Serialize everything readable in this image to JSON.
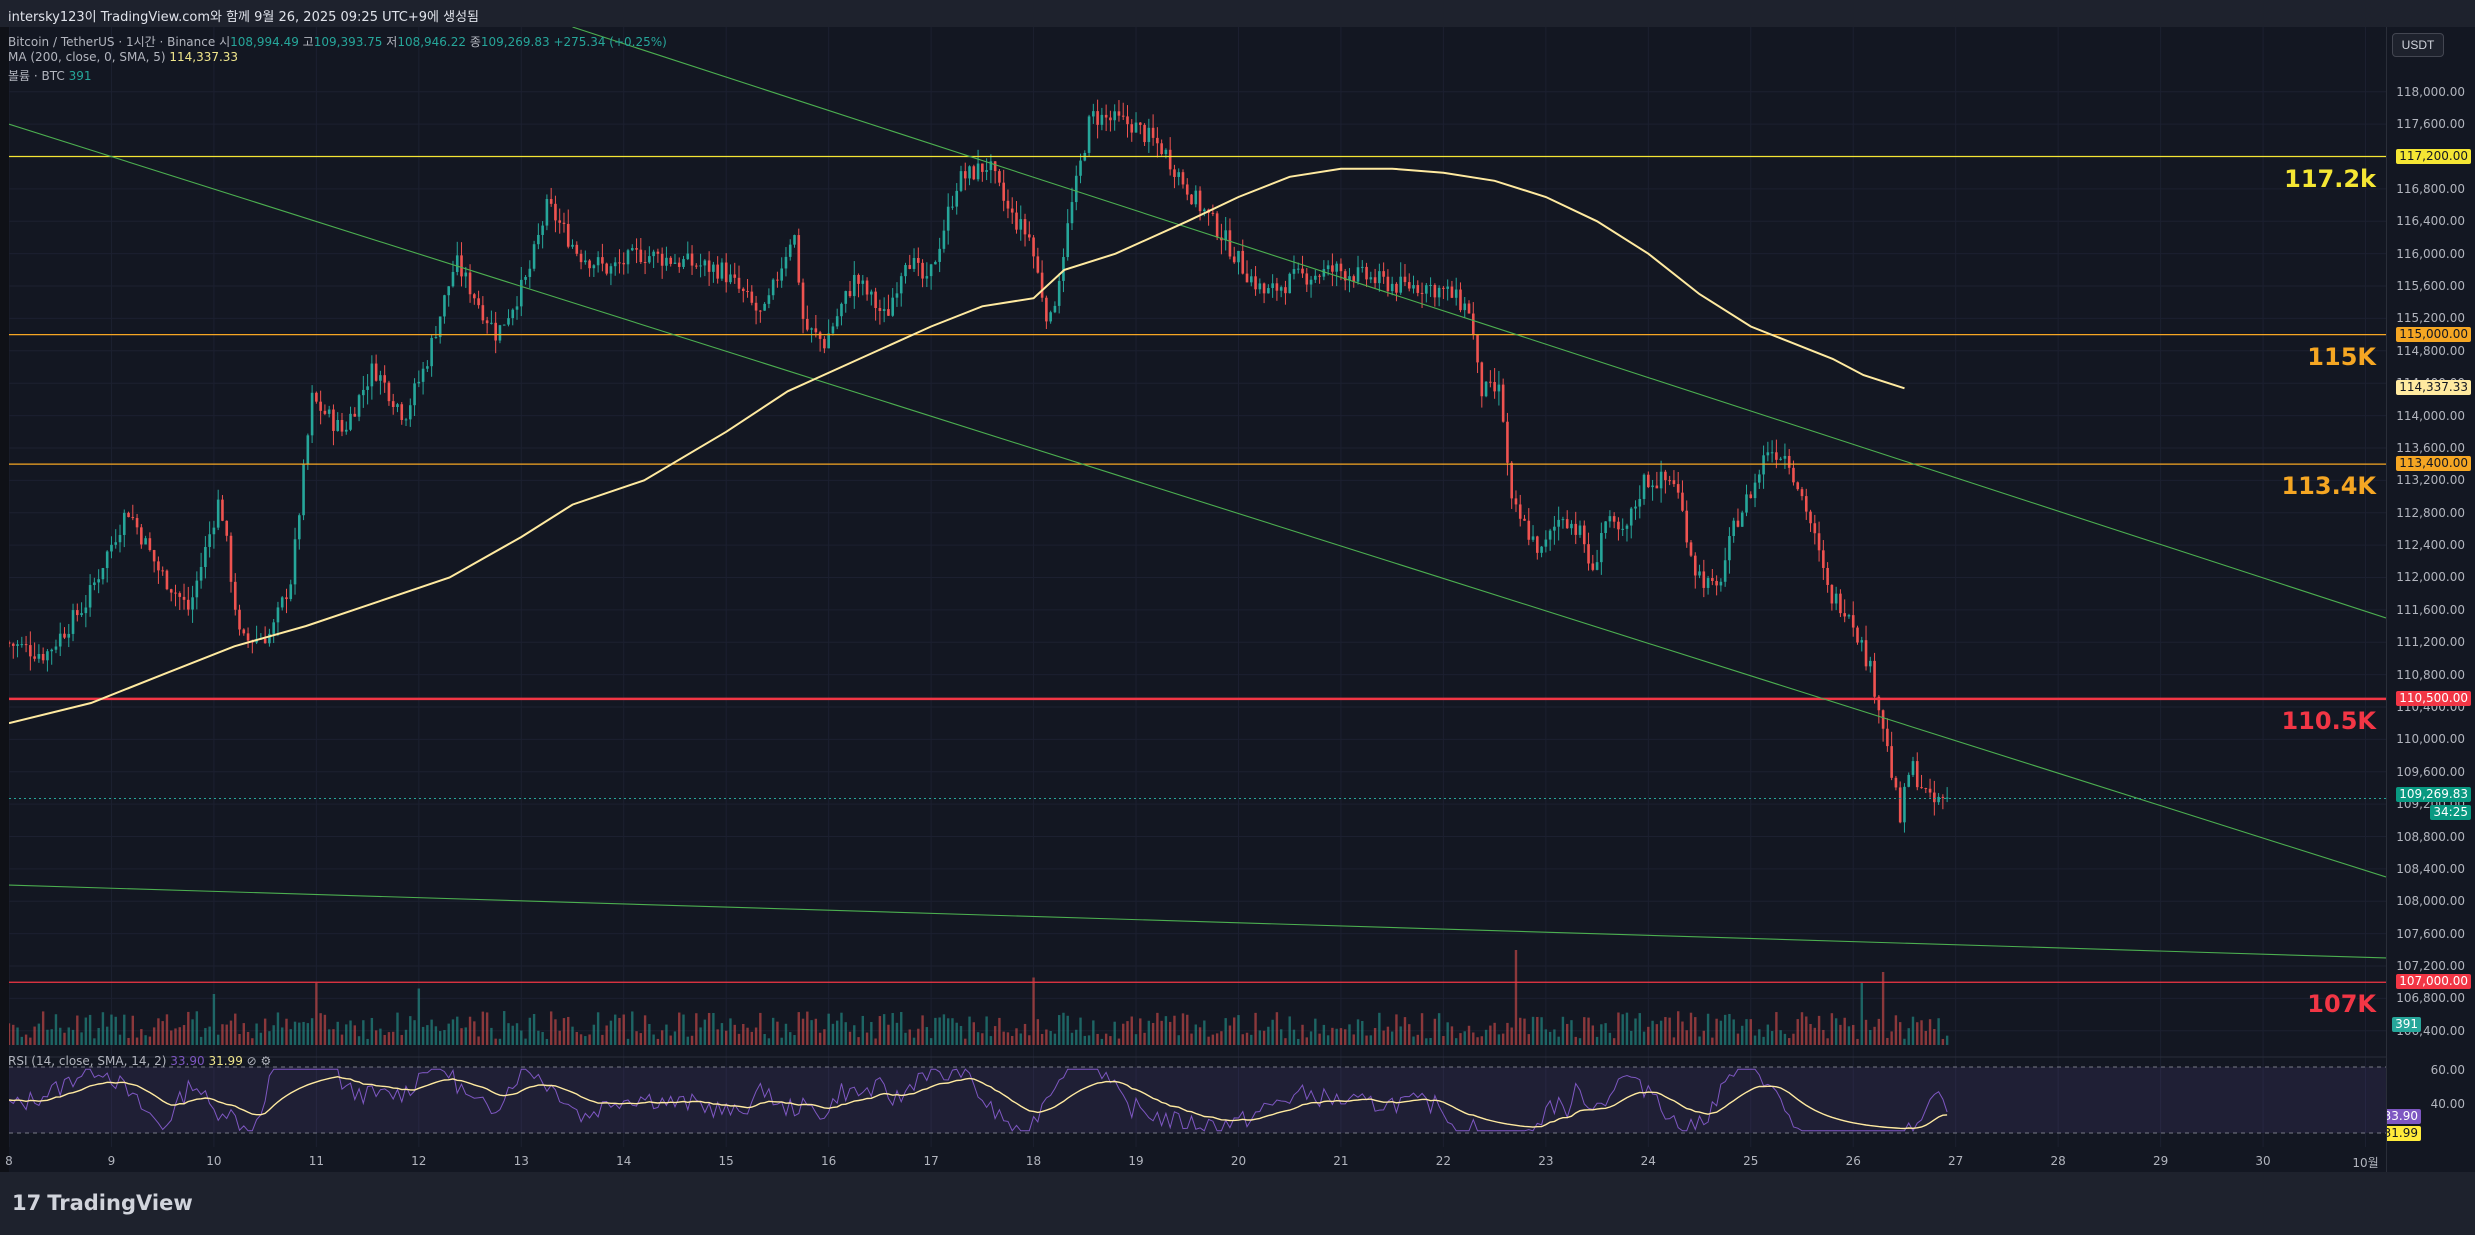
{
  "header": {
    "text": "intersky123이 TradingView.com와 함께 9월 26, 2025 09:25 UTC+9에 생성됨"
  },
  "legend": {
    "symbol": "Bitcoin / TetherUS · 1시간 · Binance",
    "o_label": "시",
    "o": "108,994.49",
    "h_label": "고",
    "h": "109,393.75",
    "l_label": "저",
    "l": "108,946.22",
    "c_label": "종",
    "c": "109,269.83",
    "change": "+275.34 (+0.25%)",
    "ma_label": "MA (200, close, 0, SMA, 5)",
    "ma_value": "114,337.33",
    "vol_label": "볼륨 · BTC",
    "vol_value": "391",
    "rsi_label": "RSI (14, close, SMA, 14, 2)",
    "rsi_value": "33.90",
    "rsi_ma": "31.99"
  },
  "currency_button": "USDT",
  "brand": {
    "name": "TradingView",
    "mark": "17"
  },
  "colors": {
    "bg": "#131722",
    "up": "#26a69a",
    "down": "#ef5350",
    "ma": "#ffeaa0",
    "trend": "#4caf50",
    "rsi": "#7e57c2"
  },
  "chart_data": {
    "type": "candlestick",
    "title": "Bitcoin / TetherUS · 1시간 · Binance",
    "price_range": [
      106200,
      118800
    ],
    "y_ticks": [
      "118,000.00",
      "117,600.00",
      "117,200.00",
      "116,800.00",
      "116,400.00",
      "116,000.00",
      "115,600.00",
      "115,200.00",
      "114,800.00",
      "114,400.00",
      "114,000.00",
      "113,600.00",
      "113,200.00",
      "112,800.00",
      "112,400.00",
      "112,000.00",
      "111,600.00",
      "111,200.00",
      "110,800.00",
      "110,400.00",
      "110,000.00",
      "109,600.00",
      "109,200.00",
      "108,800.00",
      "108,400.00",
      "108,000.00",
      "107,600.00",
      "107,200.00",
      "106,800.00",
      "106,400.00"
    ],
    "x_ticks": [
      "8",
      "9",
      "10",
      "11",
      "12",
      "13",
      "14",
      "15",
      "16",
      "17",
      "18",
      "19",
      "20",
      "21",
      "22",
      "23",
      "24",
      "25",
      "26",
      "27",
      "28",
      "29",
      "30",
      "10월"
    ],
    "x_days_range": [
      8,
      31.2
    ],
    "close_path": [
      [
        8.0,
        111200
      ],
      [
        8.4,
        111050
      ],
      [
        8.8,
        111700
      ],
      [
        9.0,
        112300
      ],
      [
        9.2,
        112850
      ],
      [
        9.5,
        112100
      ],
      [
        9.8,
        111600
      ],
      [
        10.1,
        113000
      ],
      [
        10.3,
        111200
      ],
      [
        10.6,
        111300
      ],
      [
        10.8,
        112000
      ],
      [
        11.0,
        114200
      ],
      [
        11.3,
        113800
      ],
      [
        11.6,
        114600
      ],
      [
        11.9,
        114000
      ],
      [
        12.1,
        114600
      ],
      [
        12.4,
        115900
      ],
      [
        12.8,
        115000
      ],
      [
        13.1,
        115700
      ],
      [
        13.3,
        116600
      ],
      [
        13.6,
        116000
      ],
      [
        13.9,
        115800
      ],
      [
        14.2,
        116000
      ],
      [
        14.6,
        115900
      ],
      [
        15.0,
        115800
      ],
      [
        15.2,
        115500
      ],
      [
        15.4,
        115200
      ],
      [
        15.7,
        116300
      ],
      [
        15.8,
        115100
      ],
      [
        16.0,
        114900
      ],
      [
        16.3,
        115700
      ],
      [
        16.6,
        115200
      ],
      [
        16.8,
        116000
      ],
      [
        17.0,
        115600
      ],
      [
        17.3,
        116900
      ],
      [
        17.6,
        117100
      ],
      [
        17.8,
        116500
      ],
      [
        18.0,
        116200
      ],
      [
        18.2,
        115100
      ],
      [
        18.4,
        116500
      ],
      [
        18.6,
        117700
      ],
      [
        19.0,
        117600
      ],
      [
        19.3,
        117300
      ],
      [
        19.6,
        116700
      ],
      [
        19.9,
        116200
      ],
      [
        20.1,
        115800
      ],
      [
        20.3,
        115500
      ],
      [
        20.6,
        115700
      ],
      [
        21.0,
        115800
      ],
      [
        21.3,
        115700
      ],
      [
        21.6,
        115600
      ],
      [
        21.9,
        115600
      ],
      [
        22.1,
        115500
      ],
      [
        22.3,
        115300
      ],
      [
        22.4,
        114300
      ],
      [
        22.6,
        114300
      ],
      [
        22.7,
        112900
      ],
      [
        22.8,
        112700
      ],
      [
        23.0,
        112300
      ],
      [
        23.2,
        112800
      ],
      [
        23.4,
        112500
      ],
      [
        23.5,
        112000
      ],
      [
        23.6,
        112700
      ],
      [
        23.8,
        112500
      ],
      [
        24.0,
        113200
      ],
      [
        24.3,
        113200
      ],
      [
        24.5,
        112100
      ],
      [
        24.7,
        111800
      ],
      [
        24.9,
        112700
      ],
      [
        25.1,
        113200
      ],
      [
        25.2,
        113600
      ],
      [
        25.4,
        113500
      ],
      [
        25.6,
        112800
      ],
      [
        25.8,
        111800
      ],
      [
        26.0,
        111600
      ],
      [
        26.2,
        110900
      ],
      [
        26.3,
        110400
      ],
      [
        26.5,
        109000
      ],
      [
        26.6,
        109700
      ],
      [
        26.8,
        109200
      ],
      [
        26.95,
        109270
      ]
    ],
    "ma200_path": [
      [
        8.0,
        110200
      ],
      [
        8.8,
        110450
      ],
      [
        9.5,
        110800
      ],
      [
        10.2,
        111150
      ],
      [
        10.9,
        111400
      ],
      [
        11.6,
        111700
      ],
      [
        12.3,
        112000
      ],
      [
        13.0,
        112500
      ],
      [
        13.5,
        112900
      ],
      [
        14.2,
        113200
      ],
      [
        15.0,
        113800
      ],
      [
        15.6,
        114300
      ],
      [
        16.3,
        114700
      ],
      [
        17.0,
        115100
      ],
      [
        17.5,
        115350
      ],
      [
        18.0,
        115450
      ],
      [
        18.3,
        115800
      ],
      [
        18.8,
        116000
      ],
      [
        19.5,
        116400
      ],
      [
        20.0,
        116700
      ],
      [
        20.5,
        116950
      ],
      [
        21.0,
        117050
      ],
      [
        21.5,
        117050
      ],
      [
        22.0,
        117000
      ],
      [
        22.5,
        116900
      ],
      [
        23.0,
        116700
      ],
      [
        23.5,
        116400
      ],
      [
        24.0,
        116000
      ],
      [
        24.5,
        115500
      ],
      [
        25.0,
        115100
      ],
      [
        25.4,
        114900
      ],
      [
        25.8,
        114700
      ],
      [
        26.1,
        114500
      ],
      [
        26.5,
        114337
      ]
    ],
    "price_levels": [
      {
        "price": 117200,
        "label": "117.2k",
        "badge": "117,200.00",
        "color": "#f5e634"
      },
      {
        "price": 115000,
        "label": "115K",
        "badge": "115,000.00",
        "color": "#f5a623"
      },
      {
        "price": 113400,
        "label": "113.4K",
        "badge": "113,400.00",
        "color": "#f5a623"
      },
      {
        "price": 110500,
        "label": "110.5K",
        "badge": "110,500.00",
        "color": "#f23645"
      },
      {
        "price": 107000,
        "label": "107K",
        "badge": "107,000.00",
        "color": "#f23645"
      }
    ],
    "trendlines": [
      {
        "from": [
          13.5,
          118800
        ],
        "to": [
          31.2,
          111500
        ]
      },
      {
        "from": [
          8.0,
          117600
        ],
        "to": [
          31.2,
          108300
        ]
      },
      {
        "from": [
          8.0,
          108200
        ],
        "to": [
          31.2,
          107300
        ]
      }
    ],
    "ma_badge": "114,337.33",
    "last_price_badge": "109,269.83",
    "countdown": "34:25",
    "volume_badge": "391",
    "volume_spikes": [
      [
        10.0,
        20
      ],
      [
        11.0,
        40
      ],
      [
        12.0,
        30
      ],
      [
        18.0,
        50
      ],
      [
        22.7,
        100
      ],
      [
        26.3,
        60
      ],
      [
        26.1,
        40
      ]
    ],
    "rsi": {
      "levels": [
        "60.00",
        "40.00"
      ],
      "value": "33.90",
      "ma": "31.99"
    }
  }
}
